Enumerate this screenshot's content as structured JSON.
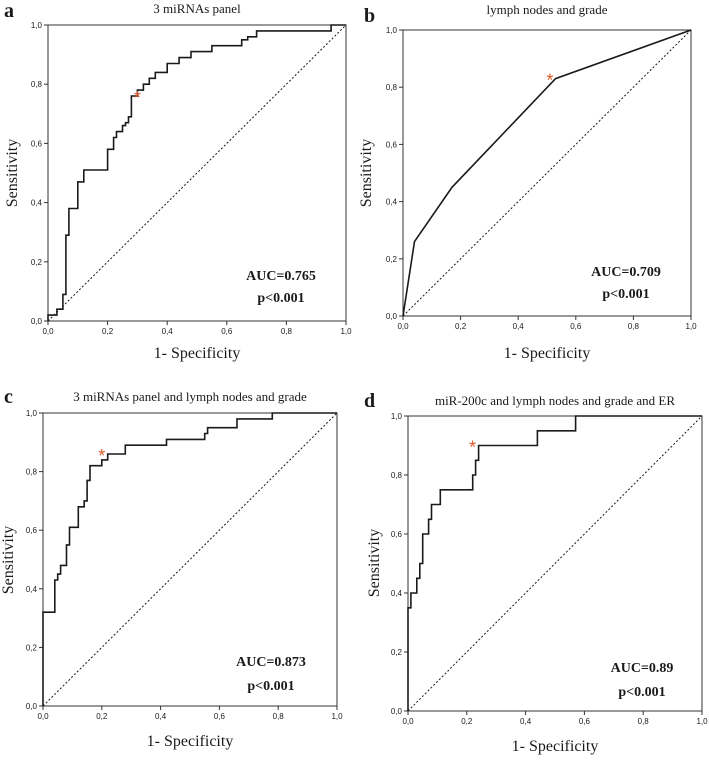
{
  "chart_data": [
    {
      "type": "line",
      "panel_letter": "a",
      "title": "3 miRNAs panel",
      "xlabel": "1- Specificity",
      "ylabel": "Sensitivity",
      "xlim": [
        0,
        1
      ],
      "ylim": [
        0,
        1
      ],
      "ticks": [
        "0,0",
        "0,2",
        "0,4",
        "0,6",
        "0,8",
        "1,0"
      ],
      "auc_label": "AUC=0.765",
      "p_label": "p<0.001",
      "marker": {
        "x": 0.3,
        "y": 0.76,
        "label": "*"
      },
      "series": [
        {
          "name": "ROC curve",
          "x": [
            0,
            0,
            0.03,
            0.03,
            0.05,
            0.05,
            0.06,
            0.06,
            0.07,
            0.07,
            0.1,
            0.1,
            0.12,
            0.12,
            0.14,
            0.14,
            0.2,
            0.2,
            0.22,
            0.22,
            0.23,
            0.23,
            0.25,
            0.25,
            0.26,
            0.26,
            0.27,
            0.27,
            0.28,
            0.28,
            0.3,
            0.3,
            0.32,
            0.32,
            0.34,
            0.34,
            0.36,
            0.36,
            0.4,
            0.4,
            0.42,
            0.42,
            0.44,
            0.44,
            0.48,
            0.48,
            0.55,
            0.55,
            0.65,
            0.65,
            0.67,
            0.67,
            0.7,
            0.7,
            0.8,
            0.8,
            0.95,
            0.95,
            1.0
          ],
          "y": [
            0,
            0.02,
            0.02,
            0.04,
            0.04,
            0.09,
            0.09,
            0.29,
            0.29,
            0.38,
            0.38,
            0.47,
            0.47,
            0.51,
            0.51,
            0.51,
            0.51,
            0.58,
            0.58,
            0.62,
            0.62,
            0.64,
            0.64,
            0.66,
            0.66,
            0.67,
            0.67,
            0.69,
            0.69,
            0.76,
            0.76,
            0.78,
            0.78,
            0.8,
            0.8,
            0.82,
            0.82,
            0.84,
            0.84,
            0.87,
            0.87,
            0.87,
            0.87,
            0.89,
            0.89,
            0.91,
            0.91,
            0.93,
            0.93,
            0.95,
            0.95,
            0.96,
            0.96,
            0.98,
            0.98,
            0.98,
            0.98,
            1.0,
            1.0
          ]
        },
        {
          "name": "Reference line",
          "x": [
            0,
            1
          ],
          "y": [
            0,
            1
          ]
        }
      ]
    },
    {
      "type": "line",
      "panel_letter": "b",
      "title": "lymph nodes and grade",
      "xlabel": "1- Specificity",
      "ylabel": "Sensitivity",
      "xlim": [
        0,
        1
      ],
      "ylim": [
        0,
        1
      ],
      "ticks": [
        "0,0",
        "0,2",
        "0,4",
        "0,6",
        "0,8",
        "1,0"
      ],
      "auc_label": "AUC=0.709",
      "p_label": "p<0.001",
      "marker": {
        "x": 0.51,
        "y": 0.83,
        "label": "*"
      },
      "series": [
        {
          "name": "ROC curve",
          "x": [
            0,
            0.04,
            0.17,
            0.53,
            1.0
          ],
          "y": [
            0,
            0.26,
            0.45,
            0.83,
            1.0
          ]
        },
        {
          "name": "Reference line",
          "x": [
            0,
            1
          ],
          "y": [
            0,
            1
          ]
        }
      ]
    },
    {
      "type": "line",
      "panel_letter": "c",
      "title": "3 miRNAs panel and lymph nodes and grade",
      "xlabel": "1- Specificity",
      "ylabel": "Sensitivity",
      "xlim": [
        0,
        1
      ],
      "ylim": [
        0,
        1
      ],
      "ticks": [
        "0,0",
        "0,2",
        "0,4",
        "0,6",
        "0,8",
        "1,0"
      ],
      "auc_label": "AUC=0.873",
      "p_label": "p<0.001",
      "marker": {
        "x": 0.2,
        "y": 0.86,
        "label": "*"
      },
      "series": [
        {
          "name": "ROC curve",
          "x": [
            0,
            0,
            0.04,
            0.04,
            0.05,
            0.05,
            0.06,
            0.06,
            0.08,
            0.08,
            0.09,
            0.09,
            0.12,
            0.12,
            0.14,
            0.14,
            0.15,
            0.15,
            0.16,
            0.16,
            0.2,
            0.2,
            0.22,
            0.22,
            0.24,
            0.24,
            0.28,
            0.28,
            0.42,
            0.42,
            0.55,
            0.55,
            0.56,
            0.56,
            0.6,
            0.6,
            0.66,
            0.66,
            0.78,
            0.78,
            1.0
          ],
          "y": [
            0,
            0.32,
            0.32,
            0.43,
            0.43,
            0.45,
            0.45,
            0.48,
            0.48,
            0.55,
            0.55,
            0.61,
            0.61,
            0.68,
            0.68,
            0.7,
            0.7,
            0.77,
            0.77,
            0.82,
            0.82,
            0.84,
            0.84,
            0.86,
            0.86,
            0.86,
            0.86,
            0.89,
            0.89,
            0.91,
            0.91,
            0.93,
            0.93,
            0.95,
            0.95,
            0.95,
            0.95,
            0.98,
            0.98,
            1.0,
            1.0
          ]
        },
        {
          "name": "Reference line",
          "x": [
            0,
            1
          ],
          "y": [
            0,
            1
          ]
        }
      ]
    },
    {
      "type": "line",
      "panel_letter": "d",
      "title": "miR-200c and lymph nodes and grade and ER",
      "xlabel": "1- Specificity",
      "ylabel": "Sensitivity",
      "xlim": [
        0,
        1
      ],
      "ylim": [
        0,
        1
      ],
      "ticks": [
        "0,0",
        "0,2",
        "0,4",
        "0,6",
        "0,8",
        "1,0"
      ],
      "auc_label": "AUC=0.89",
      "p_label": "p<0.001",
      "marker": {
        "x": 0.22,
        "y": 0.9,
        "label": "*"
      },
      "series": [
        {
          "name": "ROC curve",
          "x": [
            0,
            0,
            0.01,
            0.01,
            0.03,
            0.03,
            0.04,
            0.04,
            0.05,
            0.05,
            0.07,
            0.07,
            0.08,
            0.08,
            0.11,
            0.11,
            0.22,
            0.22,
            0.23,
            0.23,
            0.24,
            0.24,
            0.44,
            0.44,
            0.57,
            0.57,
            1.0
          ],
          "y": [
            0,
            0.35,
            0.35,
            0.4,
            0.4,
            0.45,
            0.45,
            0.5,
            0.5,
            0.6,
            0.6,
            0.65,
            0.65,
            0.7,
            0.7,
            0.75,
            0.75,
            0.8,
            0.8,
            0.85,
            0.85,
            0.9,
            0.9,
            0.95,
            0.95,
            1.0,
            1.0
          ]
        },
        {
          "name": "Reference line",
          "x": [
            0,
            1
          ],
          "y": [
            0,
            1
          ]
        }
      ]
    }
  ],
  "colors": {
    "curve": "#1a1a1a",
    "axis": "#333333",
    "marker": "#e05a2b",
    "background": "#ffffff"
  }
}
